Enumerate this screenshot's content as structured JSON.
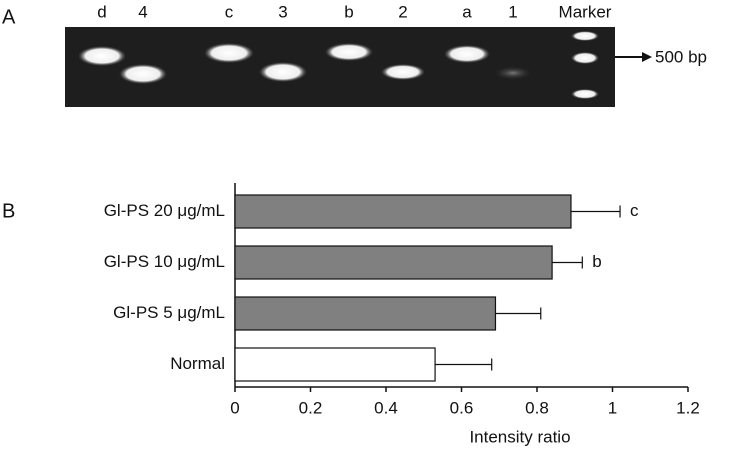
{
  "panel_labels": [
    "A",
    "B"
  ],
  "gel": {
    "lanes": [
      "d",
      "4",
      "c",
      "3",
      "b",
      "2",
      "a",
      "1",
      "Marker"
    ],
    "marker_label": "500 bp"
  },
  "chart_data": {
    "type": "hbar",
    "categories": [
      "Gl-PS 20 μg/mL",
      "Gl-PS 10 μg/mL",
      "Gl-PS 5 μg/mL",
      "Normal"
    ],
    "values": [
      0.89,
      0.84,
      0.69,
      0.53
    ],
    "errors": [
      0.13,
      0.08,
      0.12,
      0.15
    ],
    "annotations": [
      "c",
      "b",
      null,
      null
    ],
    "colors": [
      "#808080",
      "#808080",
      "#808080",
      "#ffffff"
    ],
    "xlabel": "Intensity ratio",
    "xlim": [
      0,
      1.2
    ],
    "xticks": [
      0,
      0.2,
      0.4,
      0.6,
      0.8,
      1,
      1.2
    ]
  }
}
